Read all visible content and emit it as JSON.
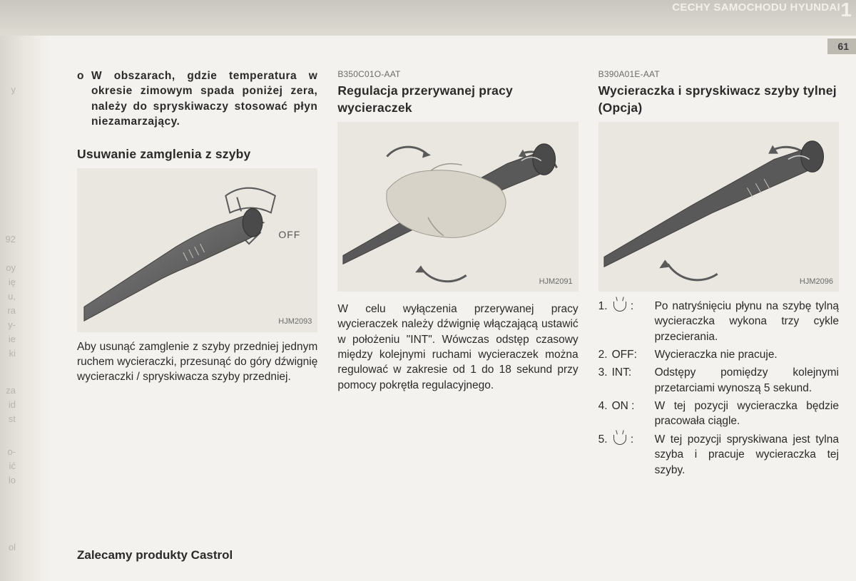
{
  "header": {
    "title": "CECHY SAMOCHODU HYUNDAI",
    "chapter_number": "1",
    "page_number": "61"
  },
  "edge": {
    "frag1": "y",
    "frag2": "oy",
    "frag3": "ię",
    "frag4": "u,",
    "frag5": "ra",
    "frag6": "y-",
    "frag7": "ie",
    "frag8": "ki",
    "frag9": "za",
    "frag10": "id",
    "frag11": "st",
    "frag12": "o-",
    "frag13": "ić",
    "frag14": "lo",
    "frag15": "ol",
    "frag16": "92"
  },
  "col1": {
    "bullet_marker": "o",
    "bullet_text": "W obszarach, gdzie temperatura w okresie zimowym spada poniżej zera, należy do spryskiwaczy stosować płyn niezamarzający.",
    "sub_title": "Usuwanie zamglenia z szyby",
    "fig_label_off": "OFF",
    "fig_caption": "HJM2093",
    "body": "Aby usunąć zamglenie z szyby przedniej jednym ruchem wycieraczki, przesunąć do góry dźwignię wycieraczki / spryskiwacza szyby przedniej."
  },
  "col2": {
    "code": "B350C01O-AAT",
    "title": "Regulacja przerywanej pracy wycieraczek",
    "fig_caption": "HJM2091",
    "body": "W celu wyłączenia przerywanej pracy wycieraczek należy dźwignię włączającą ustawić w położeniu \"INT\". Wówczas odstęp czasowy między kolejnymi ruchami wycieraczek można regulować w zakresie od 1 do 18 sekund przy pomocy pokrętła regulacyjnego."
  },
  "col3": {
    "code": "B390A01E-AAT",
    "title": "Wycieraczka i spryskiwacz szyby tylnej  (Opcja)",
    "fig_caption": "HJM2096",
    "items": [
      {
        "num": "1.",
        "label_is_icon": true,
        "label": "",
        "desc": "Po natryśnięciu płynu na szybę tylną wycieraczka wykona trzy cykle przecierania."
      },
      {
        "num": "2.",
        "label_is_icon": false,
        "label": "OFF:",
        "desc": "Wycieraczka nie pracuje."
      },
      {
        "num": "3.",
        "label_is_icon": false,
        "label": "INT:",
        "desc": "Odstępy pomiędzy kolejnymi przetarciami wynoszą 5 sekund."
      },
      {
        "num": "4.",
        "label_is_icon": false,
        "label": "ON :",
        "desc": "W tej pozycji wycieraczka będzie pracowała ciągle."
      },
      {
        "num": "5.",
        "label_is_icon": true,
        "label": "",
        "desc": "W tej pozycji spryskiwana jest tylna szyba i pracuje wycieraczka tej szyby."
      }
    ]
  },
  "footer": {
    "text": "Zalecamy produkty Castrol"
  },
  "figure_style": {
    "bg": "#e9e7df",
    "stalk_fill": "#5c5c5c",
    "stalk_stroke": "#3f3f3f",
    "hand_fill": "#d7d3c8",
    "arrow_stroke": "#5a5a5a"
  }
}
